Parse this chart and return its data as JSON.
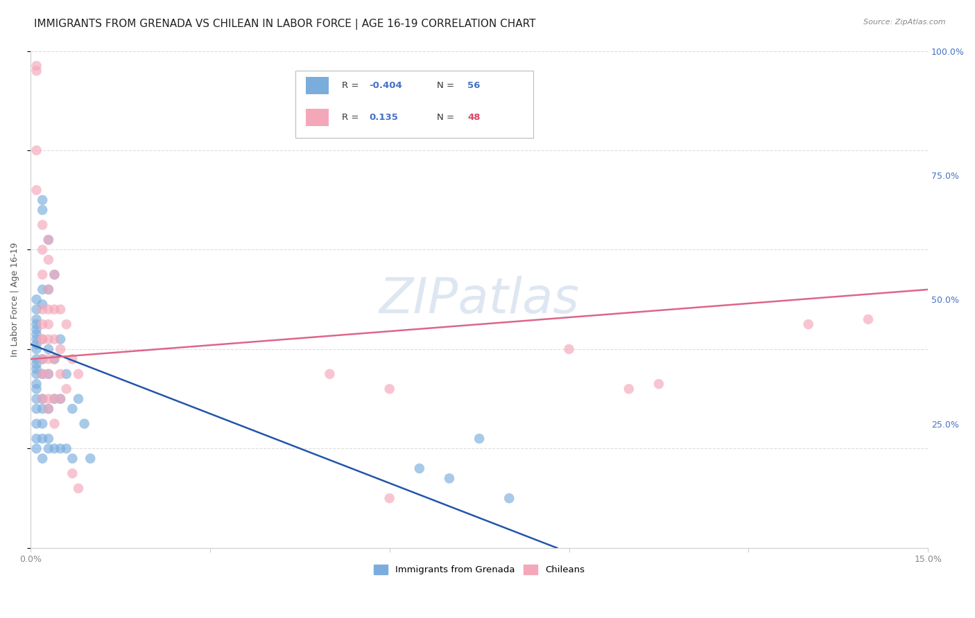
{
  "title": "IMMIGRANTS FROM GRENADA VS CHILEAN IN LABOR FORCE | AGE 16-19 CORRELATION CHART",
  "source": "Source: ZipAtlas.com",
  "ylabel": "In Labor Force | Age 16-19",
  "xlim": [
    0.0,
    0.15
  ],
  "ylim": [
    0.0,
    1.0
  ],
  "legend": {
    "R_blue": "-0.404",
    "N_blue": "56",
    "R_pink": "0.135",
    "N_pink": "48"
  },
  "watermark": "ZIPatlas",
  "blue_scatter": [
    [
      0.001,
      0.4
    ],
    [
      0.001,
      0.38
    ],
    [
      0.001,
      0.42
    ],
    [
      0.001,
      0.45
    ],
    [
      0.001,
      0.35
    ],
    [
      0.001,
      0.33
    ],
    [
      0.001,
      0.37
    ],
    [
      0.001,
      0.3
    ],
    [
      0.001,
      0.43
    ],
    [
      0.001,
      0.41
    ],
    [
      0.001,
      0.28
    ],
    [
      0.001,
      0.36
    ],
    [
      0.001,
      0.5
    ],
    [
      0.001,
      0.48
    ],
    [
      0.001,
      0.46
    ],
    [
      0.001,
      0.44
    ],
    [
      0.001,
      0.25
    ],
    [
      0.001,
      0.22
    ],
    [
      0.001,
      0.2
    ],
    [
      0.001,
      0.32
    ],
    [
      0.002,
      0.7
    ],
    [
      0.002,
      0.68
    ],
    [
      0.002,
      0.52
    ],
    [
      0.002,
      0.49
    ],
    [
      0.002,
      0.38
    ],
    [
      0.002,
      0.35
    ],
    [
      0.002,
      0.3
    ],
    [
      0.002,
      0.28
    ],
    [
      0.002,
      0.25
    ],
    [
      0.002,
      0.22
    ],
    [
      0.002,
      0.18
    ],
    [
      0.003,
      0.62
    ],
    [
      0.003,
      0.52
    ],
    [
      0.003,
      0.4
    ],
    [
      0.003,
      0.35
    ],
    [
      0.003,
      0.28
    ],
    [
      0.003,
      0.22
    ],
    [
      0.003,
      0.2
    ],
    [
      0.004,
      0.55
    ],
    [
      0.004,
      0.38
    ],
    [
      0.004,
      0.3
    ],
    [
      0.004,
      0.2
    ],
    [
      0.005,
      0.42
    ],
    [
      0.005,
      0.3
    ],
    [
      0.005,
      0.2
    ],
    [
      0.006,
      0.35
    ],
    [
      0.006,
      0.2
    ],
    [
      0.007,
      0.28
    ],
    [
      0.007,
      0.18
    ],
    [
      0.008,
      0.3
    ],
    [
      0.009,
      0.25
    ],
    [
      0.01,
      0.18
    ],
    [
      0.065,
      0.16
    ],
    [
      0.07,
      0.14
    ],
    [
      0.075,
      0.22
    ],
    [
      0.08,
      0.1
    ]
  ],
  "pink_scatter": [
    [
      0.001,
      0.97
    ],
    [
      0.001,
      0.96
    ],
    [
      0.001,
      0.8
    ],
    [
      0.001,
      0.72
    ],
    [
      0.002,
      0.65
    ],
    [
      0.002,
      0.6
    ],
    [
      0.002,
      0.55
    ],
    [
      0.002,
      0.48
    ],
    [
      0.002,
      0.45
    ],
    [
      0.002,
      0.42
    ],
    [
      0.002,
      0.38
    ],
    [
      0.002,
      0.35
    ],
    [
      0.002,
      0.3
    ],
    [
      0.002,
      0.42
    ],
    [
      0.003,
      0.62
    ],
    [
      0.003,
      0.58
    ],
    [
      0.003,
      0.52
    ],
    [
      0.003,
      0.48
    ],
    [
      0.003,
      0.45
    ],
    [
      0.003,
      0.42
    ],
    [
      0.003,
      0.38
    ],
    [
      0.003,
      0.35
    ],
    [
      0.003,
      0.3
    ],
    [
      0.003,
      0.28
    ],
    [
      0.004,
      0.55
    ],
    [
      0.004,
      0.48
    ],
    [
      0.004,
      0.42
    ],
    [
      0.004,
      0.38
    ],
    [
      0.004,
      0.3
    ],
    [
      0.004,
      0.25
    ],
    [
      0.005,
      0.48
    ],
    [
      0.005,
      0.4
    ],
    [
      0.005,
      0.35
    ],
    [
      0.005,
      0.3
    ],
    [
      0.006,
      0.45
    ],
    [
      0.006,
      0.32
    ],
    [
      0.007,
      0.38
    ],
    [
      0.008,
      0.35
    ],
    [
      0.05,
      0.35
    ],
    [
      0.06,
      0.32
    ],
    [
      0.06,
      0.1
    ],
    [
      0.09,
      0.4
    ],
    [
      0.1,
      0.32
    ],
    [
      0.105,
      0.33
    ],
    [
      0.13,
      0.45
    ],
    [
      0.14,
      0.46
    ],
    [
      0.007,
      0.15
    ],
    [
      0.008,
      0.12
    ]
  ],
  "blue_line_x": [
    0.0,
    0.088
  ],
  "blue_line_y": [
    0.41,
    0.0
  ],
  "pink_line_x": [
    0.0,
    0.15
  ],
  "pink_line_y": [
    0.38,
    0.52
  ],
  "scatter_color_blue": "#7aaddc",
  "scatter_color_pink": "#f4a7b9",
  "line_color_blue": "#2255aa",
  "line_color_pink": "#dd6688",
  "legend_color_blue": "#4472c4",
  "legend_color_pink": "#dd4466",
  "background": "#ffffff",
  "grid_color": "#dddddd",
  "title_fontsize": 11,
  "axis_fontsize": 9,
  "watermark_color": "#c8d8e8",
  "watermark_fontsize": 52
}
